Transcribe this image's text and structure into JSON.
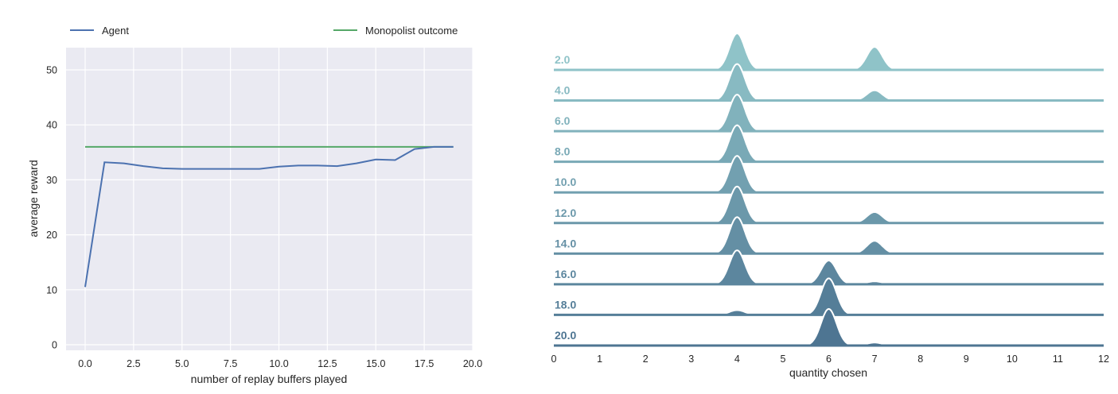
{
  "chart_data": [
    {
      "type": "line",
      "title": "",
      "xlabel": "number of replay buffers played",
      "ylabel": "average reward",
      "xlim": [
        -1,
        20
      ],
      "ylim": [
        -1,
        54
      ],
      "xticks": [
        "0.0",
        "2.5",
        "5.0",
        "7.5",
        "10.0",
        "12.5",
        "15.0",
        "17.5",
        "20.0"
      ],
      "xtick_values": [
        0,
        2.5,
        5,
        7.5,
        10,
        12.5,
        15,
        17.5,
        20
      ],
      "yticks": [
        "0",
        "10",
        "20",
        "30",
        "40",
        "50"
      ],
      "ytick_values": [
        0,
        10,
        20,
        30,
        40,
        50
      ],
      "grid": true,
      "legend_placement": "top, outside",
      "series": [
        {
          "name": "Agent",
          "color": "#4c72b0",
          "x": [
            0,
            1,
            2,
            3,
            4,
            5,
            6,
            7,
            8,
            9,
            10,
            11,
            12,
            13,
            14,
            15,
            16,
            17,
            18,
            19
          ],
          "y": [
            10.5,
            33.2,
            33.0,
            32.5,
            32.1,
            32.0,
            32.0,
            32.0,
            32.0,
            32.0,
            32.4,
            32.6,
            32.6,
            32.5,
            33.0,
            33.7,
            33.6,
            35.6,
            36.0,
            36.0
          ]
        },
        {
          "name": "Monopolist outcome",
          "color": "#55a868",
          "x": [
            0,
            19
          ],
          "y": [
            36,
            36
          ]
        }
      ]
    },
    {
      "type": "ridgeline",
      "title": "",
      "xlabel": "quantity chosen",
      "xlim": [
        0,
        12
      ],
      "xticks": [
        "0",
        "1",
        "2",
        "3",
        "4",
        "5",
        "6",
        "7",
        "8",
        "9",
        "10",
        "11",
        "12"
      ],
      "color_start": "#8fc3c8",
      "color_end": "#4e7592",
      "rows": [
        {
          "label": "2.0",
          "peaks": [
            {
              "q": 4,
              "h": 1.0
            },
            {
              "q": 7,
              "h": 0.63
            }
          ]
        },
        {
          "label": "4.0",
          "peaks": [
            {
              "q": 4,
              "h": 1.0
            },
            {
              "q": 7,
              "h": 0.28
            }
          ]
        },
        {
          "label": "6.0",
          "peaks": [
            {
              "q": 4,
              "h": 1.0
            }
          ]
        },
        {
          "label": "8.0",
          "peaks": [
            {
              "q": 4,
              "h": 1.0
            }
          ]
        },
        {
          "label": "10.0",
          "peaks": [
            {
              "q": 4,
              "h": 1.0
            }
          ]
        },
        {
          "label": "12.0",
          "peaks": [
            {
              "q": 4,
              "h": 1.0
            },
            {
              "q": 7,
              "h": 0.3
            }
          ]
        },
        {
          "label": "14.0",
          "peaks": [
            {
              "q": 4,
              "h": 1.0
            },
            {
              "q": 7,
              "h": 0.35
            }
          ]
        },
        {
          "label": "16.0",
          "peaks": [
            {
              "q": 4,
              "h": 0.93
            },
            {
              "q": 6,
              "h": 0.65
            },
            {
              "q": 7,
              "h": 0.08
            }
          ]
        },
        {
          "label": "18.0",
          "peaks": [
            {
              "q": 4,
              "h": 0.13
            },
            {
              "q": 6,
              "h": 1.0
            },
            {
              "q": 7,
              "h": 0.05
            }
          ]
        },
        {
          "label": "20.0",
          "peaks": [
            {
              "q": 6,
              "h": 1.0
            },
            {
              "q": 7,
              "h": 0.08
            }
          ]
        }
      ]
    }
  ]
}
